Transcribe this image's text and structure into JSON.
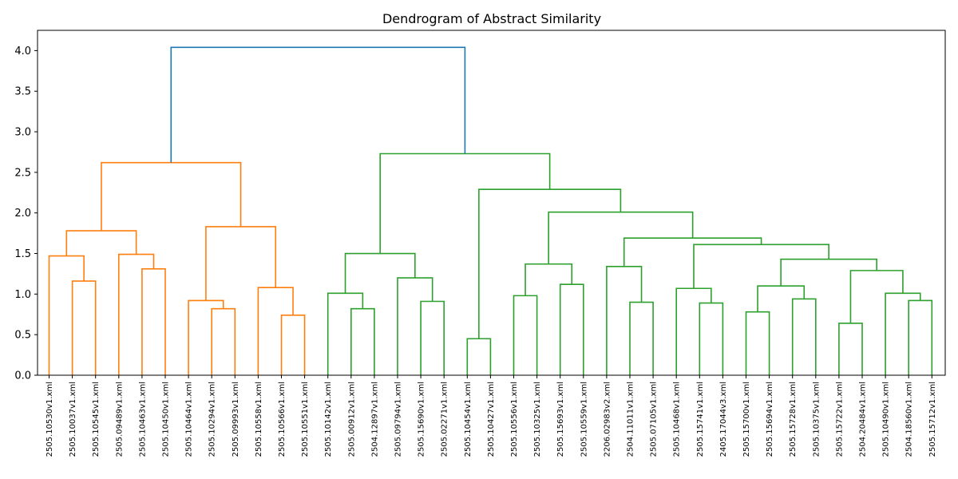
{
  "chart_data": {
    "type": "dendrogram",
    "title": "Dendrogram of Abstract Similarity",
    "ylim": [
      0,
      4.25
    ],
    "yticks": [
      0.0,
      0.5,
      1.0,
      1.5,
      2.0,
      2.5,
      3.0,
      3.5,
      4.0
    ],
    "ytick_labels": [
      "0.0",
      "0.5",
      "1.0",
      "1.5",
      "2.0",
      "2.5",
      "3.0",
      "3.5",
      "4.0"
    ],
    "leaves": [
      "2505.10530v1.xml",
      "2505.10037v1.xml",
      "2505.10545v1.xml",
      "2505.09489v1.xml",
      "2505.10463v1.xml",
      "2505.10450v1.xml",
      "2505.10464v1.xml",
      "2505.10294v1.xml",
      "2505.09993v1.xml",
      "2505.10558v1.xml",
      "2505.10566v1.xml",
      "2505.10551v1.xml",
      "2505.10142v1.xml",
      "2505.00912v1.xml",
      "2504.12897v1.xml",
      "2505.09794v1.xml",
      "2505.15690v1.xml",
      "2505.02271v1.xml",
      "2505.10454v1.xml",
      "2505.10427v1.xml",
      "2505.10556v1.xml",
      "2505.10325v1.xml",
      "2505.15693v1.xml",
      "2505.10559v1.xml",
      "2206.02983v2.xml",
      "2504.11011v1.xml",
      "2505.07105v1.xml",
      "2505.10468v1.xml",
      "2505.15741v1.xml",
      "2405.17044v3.xml",
      "2505.15700v1.xml",
      "2505.15694v1.xml",
      "2505.15728v1.xml",
      "2505.10375v1.xml",
      "2505.15722v1.xml",
      "2504.20484v1.xml",
      "2505.10490v1.xml",
      "2504.18560v1.xml",
      "2505.15712v1.xml"
    ],
    "merges": [
      {
        "left": 1,
        "right": 2,
        "height": 1.16,
        "color": "#ff7f0e"
      },
      {
        "left": 0,
        "right": "m0",
        "height": 1.47,
        "color": "#ff7f0e"
      },
      {
        "left": 4,
        "right": 5,
        "height": 1.31,
        "color": "#ff7f0e"
      },
      {
        "left": 3,
        "right": "m2",
        "height": 1.49,
        "color": "#ff7f0e"
      },
      {
        "left": "m1",
        "right": "m3",
        "height": 1.78,
        "color": "#ff7f0e"
      },
      {
        "left": 7,
        "right": 8,
        "height": 0.82,
        "color": "#ff7f0e"
      },
      {
        "left": 6,
        "right": "m5",
        "height": 0.92,
        "color": "#ff7f0e"
      },
      {
        "left": 10,
        "right": 11,
        "height": 0.74,
        "color": "#ff7f0e"
      },
      {
        "left": 9,
        "right": "m7",
        "height": 1.08,
        "color": "#ff7f0e"
      },
      {
        "left": "m6",
        "right": "m8",
        "height": 1.83,
        "color": "#ff7f0e"
      },
      {
        "left": "m4",
        "right": "m9",
        "height": 2.62,
        "color": "#ff7f0e"
      },
      {
        "left": 13,
        "right": 14,
        "height": 0.82,
        "color": "#2ca02c"
      },
      {
        "left": 12,
        "right": "m11",
        "height": 1.01,
        "color": "#2ca02c"
      },
      {
        "left": 16,
        "right": 17,
        "height": 0.91,
        "color": "#2ca02c"
      },
      {
        "left": 15,
        "right": "m13",
        "height": 1.2,
        "color": "#2ca02c"
      },
      {
        "left": "m12",
        "right": "m14",
        "height": 1.5,
        "color": "#2ca02c"
      },
      {
        "left": 18,
        "right": 19,
        "height": 0.45,
        "color": "#2ca02c"
      },
      {
        "left": 20,
        "right": 21,
        "height": 0.98,
        "color": "#2ca02c"
      },
      {
        "left": 22,
        "right": 23,
        "height": 1.12,
        "color": "#2ca02c"
      },
      {
        "left": "m17",
        "right": "m18",
        "height": 1.37,
        "color": "#2ca02c"
      },
      {
        "left": 25,
        "right": 26,
        "height": 0.9,
        "color": "#2ca02c"
      },
      {
        "left": 24,
        "right": "m20",
        "height": 1.34,
        "color": "#2ca02c"
      },
      {
        "left": 28,
        "right": 29,
        "height": 0.89,
        "color": "#2ca02c"
      },
      {
        "left": 27,
        "right": "m22",
        "height": 1.07,
        "color": "#2ca02c"
      },
      {
        "left": 30,
        "right": 31,
        "height": 0.78,
        "color": "#2ca02c"
      },
      {
        "left": 32,
        "right": 33,
        "height": 0.94,
        "color": "#2ca02c"
      },
      {
        "left": "m24",
        "right": "m25",
        "height": 1.1,
        "color": "#2ca02c"
      },
      {
        "left": 34,
        "right": 35,
        "height": 0.64,
        "color": "#2ca02c"
      },
      {
        "left": 37,
        "right": 38,
        "height": 0.92,
        "color": "#2ca02c"
      },
      {
        "left": 36,
        "right": "m28",
        "height": 1.01,
        "color": "#2ca02c"
      },
      {
        "left": "m27",
        "right": "m29",
        "height": 1.29,
        "color": "#2ca02c"
      },
      {
        "left": "m26",
        "right": "m30",
        "height": 1.43,
        "color": "#2ca02c"
      },
      {
        "left": "m23",
        "right": "m31",
        "height": 1.61,
        "color": "#2ca02c"
      },
      {
        "left": "m21",
        "right": "m32",
        "height": 1.69,
        "color": "#2ca02c"
      },
      {
        "left": "m19",
        "right": "m33",
        "height": 2.01,
        "color": "#2ca02c"
      },
      {
        "left": "m16",
        "right": "m34",
        "height": 2.29,
        "color": "#2ca02c"
      },
      {
        "left": "m15",
        "right": "m35",
        "height": 2.73,
        "color": "#2ca02c"
      },
      {
        "left": "m10",
        "right": "m36",
        "height": 4.04,
        "color": "#1f77b4"
      }
    ]
  }
}
